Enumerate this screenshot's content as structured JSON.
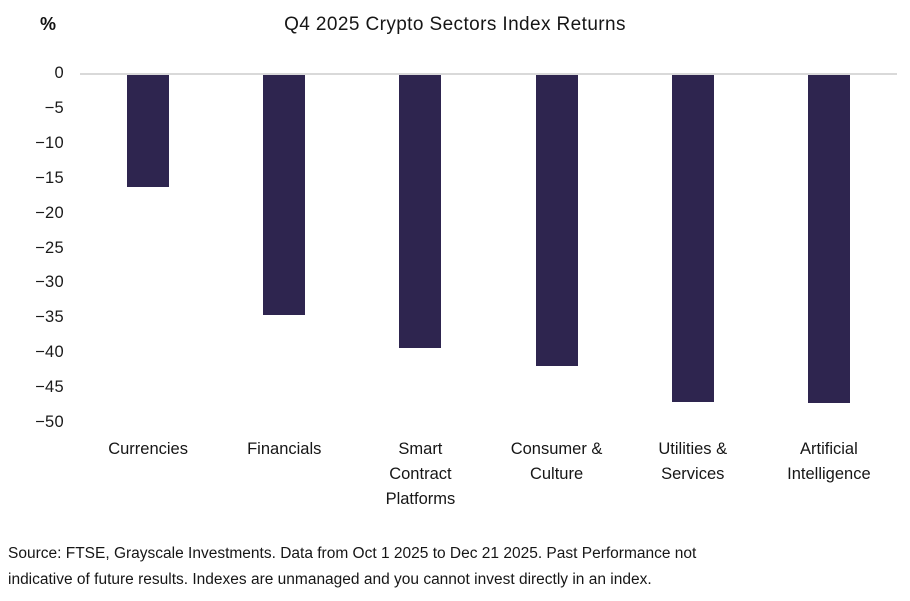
{
  "chart_data": {
    "type": "bar",
    "title": "Q4 2025 Crypto Sectors Index Returns",
    "xlabel": "",
    "ylabel": "%",
    "categories": [
      "Currencies",
      "Financials",
      "Smart Contract Platforms",
      "Consumer & Culture",
      "Utilities & Services",
      "Artificial Intelligence"
    ],
    "values": [
      -16.2,
      -34.5,
      -39.3,
      -41.8,
      -47.0,
      -47.1
    ],
    "ylim": [
      -50,
      0
    ],
    "yticks": [
      0,
      -5,
      -10,
      -15,
      -20,
      -25,
      -30,
      -35,
      -40,
      -45,
      -50
    ],
    "ytick_labels": [
      "0",
      "−5",
      "−10",
      "−15",
      "−20",
      "−25",
      "−30",
      "−35",
      "−40",
      "−45",
      "−50"
    ],
    "grid": "zero-line-only",
    "legend_position": "none",
    "bar_color": "#2e254f",
    "gridline_color": "#d9d9d9"
  },
  "footer": {
    "lines": [
      "Source: FTSE, Grayscale Investments. Data from Oct 1 2025 to Dec 21 2025. Past Performance not",
      "indicative of future results. Indexes are unmanaged and you cannot invest directly in an index."
    ]
  }
}
